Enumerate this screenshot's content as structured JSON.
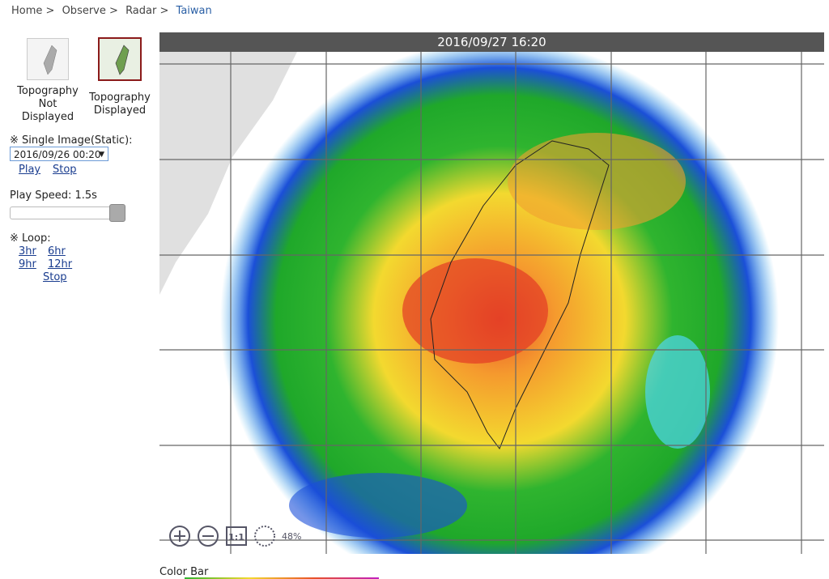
{
  "breadcrumb": [
    "Home",
    ">",
    "Observe",
    ">",
    "Radar",
    ">",
    "Taiwan"
  ],
  "thumbnails": [
    {
      "label": "Topography Not Displayed"
    },
    {
      "label": "Topography Displayed"
    }
  ],
  "single_image": {
    "label": "※ Single Image(Static):",
    "selected": "2016/09/26 00:20",
    "play": "Play",
    "stop": "Stop"
  },
  "play_speed": "Play Speed: 1.5s",
  "loop": {
    "label": "※ Loop:",
    "options": [
      "3hr",
      "6hr",
      "9hr",
      "12hr"
    ],
    "stop": "Stop"
  },
  "radar": {
    "timestamp": "2016/09/27 16:20",
    "zoom_level": "48%",
    "zoom_reset": "1:1"
  },
  "color_bar": "Color Bar"
}
